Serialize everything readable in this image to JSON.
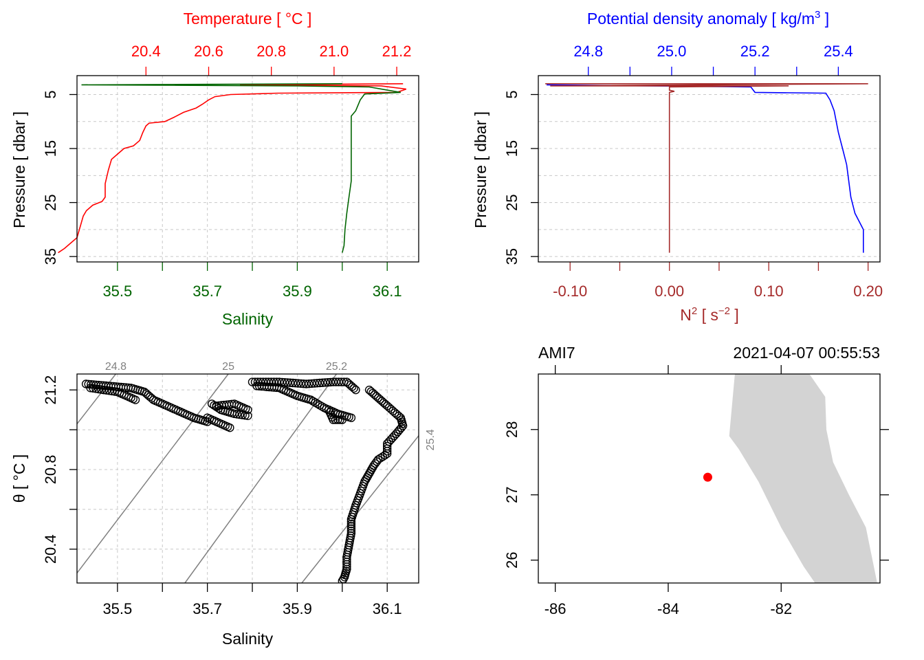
{
  "colors": {
    "temperature": "#ff0000",
    "salinity": "#006400",
    "density": "#0000ff",
    "n2": "#a52a2a",
    "frame": "#000000",
    "grid": "#c8c8c8",
    "isopycnal": "#808080",
    "land": "#d3d3d3",
    "station": "#ff0000"
  },
  "chart_data": [
    {
      "id": "profile-ts",
      "type": "line",
      "ylabel": "Pressure [ dbar ]",
      "ylim": [
        36,
        1.5
      ],
      "yticks": [
        5,
        15,
        25,
        35
      ],
      "ytick_labels": [
        "5",
        "15",
        "25",
        "35"
      ],
      "top_axis": {
        "label": "Temperature [ °C ]",
        "range": [
          20.18,
          21.27
        ],
        "ticks": [
          20.4,
          20.6,
          20.8,
          21.0,
          21.2
        ],
        "tick_labels": [
          "20.4",
          "20.6",
          "20.8",
          "21.0",
          "21.2"
        ]
      },
      "bottom_axis": {
        "label": "Salinity",
        "range": [
          35.41,
          36.17
        ],
        "ticks": [
          35.5,
          35.6,
          35.7,
          35.8,
          35.9,
          36.0,
          36.1
        ],
        "labeled_ticks": [
          35.5,
          35.7,
          35.9,
          36.1
        ],
        "tick_labels": [
          "35.5",
          "35.7",
          "35.9",
          "36.1"
        ]
      },
      "series": [
        {
          "name": "Temperature",
          "axis": "top",
          "points": [
            [
              21.22,
              3.0
            ],
            [
              20.7,
              3.2
            ],
            [
              21.15,
              3.4
            ],
            [
              21.23,
              4.0
            ],
            [
              21.2,
              4.6
            ],
            [
              20.82,
              4.75
            ],
            [
              20.67,
              5.0
            ],
            [
              20.62,
              5.4
            ],
            [
              20.6,
              6.0
            ],
            [
              20.58,
              6.8
            ],
            [
              20.56,
              7.5
            ],
            [
              20.52,
              8.3
            ],
            [
              20.49,
              9.2
            ],
            [
              20.46,
              10.0
            ],
            [
              20.41,
              10.3
            ],
            [
              20.4,
              10.8
            ],
            [
              20.39,
              12.0
            ],
            [
              20.38,
              13.5
            ],
            [
              20.36,
              14.5
            ],
            [
              20.33,
              15.0
            ],
            [
              20.31,
              16.0
            ],
            [
              20.29,
              17.0
            ],
            [
              20.28,
              19.0
            ],
            [
              20.27,
              21.5
            ],
            [
              20.27,
              24.0
            ],
            [
              20.26,
              24.8
            ],
            [
              20.23,
              25.5
            ],
            [
              20.21,
              26.5
            ],
            [
              20.2,
              27.5
            ],
            [
              20.19,
              29.5
            ],
            [
              20.18,
              31.5
            ],
            [
              20.16,
              32.5
            ],
            [
              20.14,
              33.5
            ],
            [
              20.12,
              34.3
            ]
          ]
        },
        {
          "name": "Salinity",
          "axis": "bottom",
          "points": [
            [
              36.0,
              3.0
            ],
            [
              35.42,
              3.2
            ],
            [
              35.9,
              3.4
            ],
            [
              36.06,
              3.6
            ],
            [
              36.13,
              4.6
            ],
            [
              36.05,
              4.9
            ],
            [
              36.04,
              6.0
            ],
            [
              36.03,
              8.0
            ],
            [
              36.02,
              9.0
            ],
            [
              36.02,
              14.0
            ],
            [
              36.02,
              18.0
            ],
            [
              36.02,
              21.0
            ],
            [
              36.015,
              24.0
            ],
            [
              36.01,
              27.0
            ],
            [
              36.006,
              30.0
            ],
            [
              36.004,
              33.0
            ],
            [
              36.0,
              34.3
            ]
          ]
        }
      ]
    },
    {
      "id": "profile-density",
      "type": "line",
      "ylabel": "Pressure [ dbar ]",
      "ylim": [
        36,
        1.5
      ],
      "yticks": [
        5,
        15,
        25,
        35
      ],
      "ytick_labels": [
        "5",
        "15",
        "25",
        "35"
      ],
      "top_axis": {
        "label": "Potential density anomaly [ kg/m³ ]",
        "range": [
          24.68,
          25.5
        ],
        "ticks": [
          24.8,
          24.9,
          25.0,
          25.1,
          25.2,
          25.3,
          25.4
        ],
        "labeled_ticks": [
          24.8,
          25.0,
          25.2,
          25.4
        ],
        "tick_labels": [
          "24.8",
          "25.0",
          "25.2",
          "25.4"
        ]
      },
      "bottom_axis": {
        "label": "N² [ s⁻² ]",
        "range": [
          -0.132,
          0.212
        ],
        "ticks": [
          -0.1,
          -0.05,
          0.0,
          0.05,
          0.1,
          0.15,
          0.2
        ],
        "labeled_ticks": [
          -0.1,
          0.0,
          0.1,
          0.2
        ],
        "tick_labels": [
          "-0.10",
          "0.00",
          "0.10",
          "0.20"
        ]
      },
      "series": [
        {
          "name": "Potential density anomaly",
          "axis": "top",
          "points": [
            [
              24.7,
              3.2
            ],
            [
              25.19,
              3.6
            ],
            [
              25.2,
              4.6
            ],
            [
              25.37,
              4.75
            ],
            [
              25.38,
              6.0
            ],
            [
              25.39,
              8.0
            ],
            [
              25.4,
              12.0
            ],
            [
              25.41,
              15.0
            ],
            [
              25.42,
              18.0
            ],
            [
              25.43,
              24.0
            ],
            [
              25.44,
              27.0
            ],
            [
              25.46,
              30.0
            ],
            [
              25.46,
              34.3
            ]
          ]
        },
        {
          "name": "N²",
          "axis": "bottom",
          "points": [
            [
              -0.125,
              3.0
            ],
            [
              0.2,
              3.0
            ],
            [
              -0.12,
              3.4
            ],
            [
              0.12,
              3.4
            ],
            [
              0.0,
              3.6
            ],
            [
              0.0,
              4.2
            ],
            [
              0.005,
              4.4
            ],
            [
              0.0,
              4.6
            ],
            [
              0.0,
              34.3
            ]
          ]
        }
      ]
    },
    {
      "id": "ts-diagram",
      "type": "scatter",
      "xlabel": "Salinity",
      "ylabel": "θ [ °C ]",
      "xlim": [
        35.41,
        36.17
      ],
      "ylim": [
        20.23,
        21.28
      ],
      "xticks": [
        35.5,
        35.6,
        35.7,
        35.8,
        35.9,
        36.0,
        36.1
      ],
      "xlabeled": [
        35.5,
        35.7,
        35.9,
        36.1
      ],
      "xtick_labels": [
        "35.5",
        "35.7",
        "35.9",
        "36.1"
      ],
      "yticks": [
        20.4,
        20.6,
        20.8,
        21.0,
        21.2
      ],
      "ylabeled": [
        20.4,
        20.8,
        21.2
      ],
      "ytick_labels": [
        "20.4",
        "20.8",
        "21.2"
      ],
      "isopycnals": [
        {
          "label": "24.8",
          "points": [
            [
              35.4,
              21.0
            ],
            [
              35.51,
              21.32
            ]
          ]
        },
        {
          "label": "25",
          "points": [
            [
              35.4,
              20.25
            ],
            [
              35.76,
              21.32
            ]
          ]
        },
        {
          "label": "25.2",
          "points": [
            [
              35.65,
              20.23
            ],
            [
              36.0,
              21.32
            ]
          ]
        },
        {
          "label": "25.4",
          "points": [
            [
              35.91,
              20.23
            ],
            [
              36.17,
              20.97
            ]
          ]
        }
      ],
      "point_segments": [
        [
          [
            35.43,
            21.23
          ],
          [
            35.48,
            21.22
          ],
          [
            35.53,
            21.21
          ],
          [
            35.56,
            21.19
          ],
          [
            35.58,
            21.15
          ],
          [
            35.61,
            21.12
          ],
          [
            35.64,
            21.09
          ],
          [
            35.67,
            21.06
          ],
          [
            35.7,
            21.04
          ]
        ],
        [
          [
            35.44,
            21.21
          ],
          [
            35.5,
            21.19
          ],
          [
            35.54,
            21.15
          ]
        ],
        [
          [
            35.7,
            21.06
          ],
          [
            35.72,
            21.04
          ],
          [
            35.75,
            21.01
          ]
        ],
        [
          [
            35.71,
            21.13
          ],
          [
            35.73,
            21.1
          ],
          [
            35.76,
            21.08
          ],
          [
            35.79,
            21.07
          ]
        ],
        [
          [
            35.72,
            21.12
          ],
          [
            35.76,
            21.13
          ],
          [
            35.79,
            21.1
          ]
        ],
        [
          [
            35.8,
            21.24
          ],
          [
            35.86,
            21.24
          ],
          [
            35.92,
            21.23
          ],
          [
            35.98,
            21.24
          ],
          [
            36.01,
            21.24
          ],
          [
            36.03,
            21.2
          ]
        ],
        [
          [
            35.81,
            21.22
          ],
          [
            35.86,
            21.21
          ],
          [
            35.9,
            21.17
          ],
          [
            35.93,
            21.15
          ],
          [
            35.96,
            21.11
          ],
          [
            35.99,
            21.08
          ],
          [
            36.02,
            21.06
          ]
        ],
        [
          [
            35.97,
            21.1
          ],
          [
            35.98,
            21.05
          ],
          [
            36.0,
            21.05
          ]
        ],
        [
          [
            36.06,
            21.2
          ],
          [
            36.08,
            21.16
          ],
          [
            36.1,
            21.12
          ],
          [
            36.13,
            21.06
          ],
          [
            36.135,
            21.02
          ],
          [
            36.12,
            20.98
          ],
          [
            36.1,
            20.93
          ],
          [
            36.1,
            20.88
          ],
          [
            36.08,
            20.85
          ],
          [
            36.07,
            20.82
          ],
          [
            36.06,
            20.78
          ],
          [
            36.05,
            20.74
          ],
          [
            36.04,
            20.68
          ],
          [
            36.03,
            20.62
          ],
          [
            36.02,
            20.55
          ],
          [
            36.02,
            20.48
          ],
          [
            36.015,
            20.42
          ],
          [
            36.01,
            20.36
          ],
          [
            36.01,
            20.3
          ],
          [
            36.005,
            20.26
          ],
          [
            36.0,
            20.24
          ]
        ]
      ]
    },
    {
      "id": "station-map",
      "type": "scatter",
      "xlim": [
        -86.3,
        -80.25
      ],
      "ylim": [
        25.65,
        28.85
      ],
      "xticks": [
        -86,
        -84,
        -82
      ],
      "xtick_labels": [
        "-86",
        "-84",
        "-82"
      ],
      "yticks": [
        26,
        27,
        28
      ],
      "ytick_labels": [
        "26",
        "27",
        "28"
      ],
      "station_label": "AMI7",
      "timestamp": "2021-04-07 00:55:53",
      "station": {
        "lon": -83.3,
        "lat": 27.27
      },
      "coast_polygon": [
        [
          -82.82,
          28.85
        ],
        [
          -81.5,
          28.85
        ],
        [
          -81.22,
          28.5
        ],
        [
          -81.2,
          28.0
        ],
        [
          -81.08,
          27.5
        ],
        [
          -80.8,
          27.0
        ],
        [
          -80.5,
          26.5
        ],
        [
          -80.3,
          25.65
        ],
        [
          -81.4,
          25.65
        ],
        [
          -81.6,
          25.9
        ],
        [
          -82.0,
          26.5
        ],
        [
          -82.4,
          27.2
        ],
        [
          -82.75,
          27.7
        ],
        [
          -82.92,
          27.9
        ],
        [
          -82.82,
          28.85
        ]
      ]
    }
  ]
}
